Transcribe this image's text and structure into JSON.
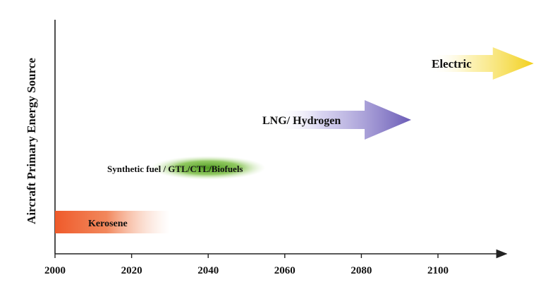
{
  "y_axis_label": "Aircraft Primary Energy Source",
  "x_ticks": [
    "2000",
    "2020",
    "2040",
    "2060",
    "2080",
    "2100"
  ],
  "bands": [
    {
      "label": "Kerosene",
      "start_year": 2000,
      "end_year": 2030,
      "color": "#ef5a2a",
      "shape": "bar",
      "tier": 1
    },
    {
      "label": "Synthetic fuel / GTL/CTL/Biofuels",
      "start_year": 2025,
      "end_year": 2055,
      "color": "#6db33f",
      "shape": "ellipse",
      "tier": 2
    },
    {
      "label": "LNG/ Hydrogen",
      "start_year": 2057,
      "end_year": 2093,
      "color": "#7060b8",
      "shape": "arrow",
      "tier": 3
    },
    {
      "label": "Electric",
      "start_year": 2098,
      "end_year": 2125,
      "color": "#f2d01c",
      "shape": "arrow",
      "tier": 4
    }
  ]
}
